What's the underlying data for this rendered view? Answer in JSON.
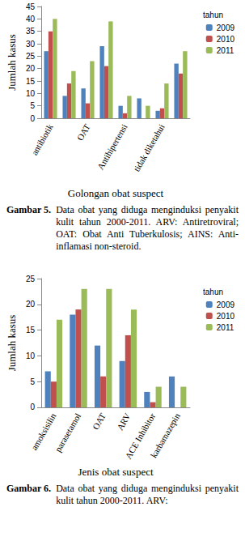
{
  "chart_data": [
    {
      "type": "bar",
      "caption_label": "Gambar 5.",
      "caption": "Data obat yang diduga menginduksi penyakit kulit tahun 2000-2011. ARV: Antiretroviral; OAT: Obat Anti Tuberkulosis; AINS: Anti-inflamasi non-steroid.",
      "xlabel": "Golongan obat suspect",
      "ylabel": "Jumlah kasus",
      "legend_title": "tahun",
      "legend": "right",
      "categories": [
        "antibiotik",
        null,
        "OAT",
        null,
        "Antihipertensi",
        null,
        "tidak diketahui",
        null
      ],
      "series": [
        {
          "name": "2009",
          "color": "#4f81bd",
          "values": [
            27,
            9,
            12,
            29,
            5,
            8,
            3,
            22
          ]
        },
        {
          "name": "2010",
          "color": "#c0504d",
          "values": [
            35,
            14,
            6,
            21,
            2,
            0,
            4,
            18
          ]
        },
        {
          "name": "2011",
          "color": "#9bbb59",
          "values": [
            40,
            19,
            23,
            39,
            9,
            5,
            14,
            27
          ]
        }
      ],
      "ylim": [
        0,
        45
      ],
      "yticks": [
        0,
        5,
        10,
        15,
        20,
        25,
        30,
        35,
        40,
        45
      ],
      "grid": false
    },
    {
      "type": "bar",
      "caption_label": "Gambar 6.",
      "caption": "Data obat yang diduga menginduksi penyakit kulit tahun 2000-2011. ARV:",
      "xlabel": "Jenis obat suspect",
      "ylabel": "Jumlah kasus",
      "legend_title": "tahun",
      "legend": "right",
      "categories": [
        "amoksisilin",
        "parasetamol",
        "OAT",
        "ARV",
        "ACE Inhibitor",
        "karbamazepin"
      ],
      "series": [
        {
          "name": "2009",
          "color": "#4f81bd",
          "values": [
            7,
            18,
            12,
            9,
            3,
            6
          ]
        },
        {
          "name": "2010",
          "color": "#c0504d",
          "values": [
            5,
            19,
            6,
            14,
            1,
            0
          ]
        },
        {
          "name": "2011",
          "color": "#9bbb59",
          "values": [
            17,
            23,
            23,
            19,
            4,
            4
          ]
        }
      ],
      "ylim": [
        0,
        25
      ],
      "yticks": [
        0,
        5,
        10,
        15,
        20,
        25
      ],
      "grid": false
    }
  ]
}
